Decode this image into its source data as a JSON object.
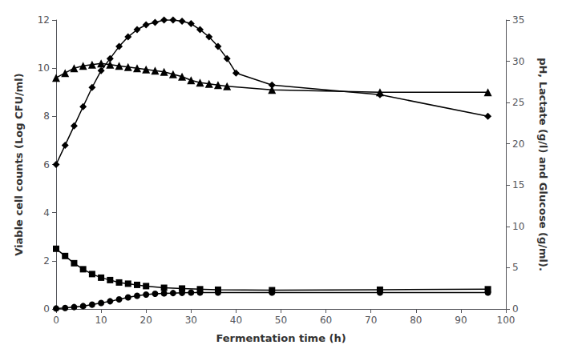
{
  "chart_data": {
    "type": "line",
    "xlabel": "Fermentation time (h)",
    "ylabel": "Viable cell counts (Log CFU/ml)",
    "y2label": "pH, Lactate (g/l) and Glucose (g/ml).",
    "xlim": [
      0,
      100
    ],
    "xticks": [
      0,
      10,
      20,
      30,
      40,
      50,
      60,
      70,
      80,
      90,
      100
    ],
    "ylim": [
      0,
      12
    ],
    "yticks": [
      0,
      2,
      4,
      6,
      8,
      10,
      12
    ],
    "y2lim": [
      0,
      35
    ],
    "y2ticks": [
      0,
      5,
      10,
      15,
      20,
      25,
      30,
      35
    ],
    "grid": false,
    "series": [
      {
        "color": "#000000",
        "marker": "diamond",
        "x": [
          0,
          2,
          4,
          6,
          8,
          10,
          12,
          14,
          16,
          18,
          20,
          22,
          24,
          26,
          28,
          30,
          32,
          34,
          36,
          38,
          40,
          48,
          72,
          96
        ],
        "values": [
          6.0,
          6.8,
          7.6,
          8.4,
          9.2,
          9.9,
          10.4,
          10.9,
          11.3,
          11.6,
          11.8,
          11.9,
          12.0,
          12.0,
          11.95,
          11.85,
          11.6,
          11.3,
          10.9,
          10.4,
          9.8,
          9.3,
          8.9,
          8.0
        ]
      },
      {
        "color": "#000000",
        "marker": "triangle",
        "x": [
          0,
          2,
          4,
          6,
          8,
          10,
          12,
          14,
          16,
          18,
          20,
          22,
          24,
          26,
          28,
          30,
          32,
          34,
          36,
          38,
          48,
          72,
          96
        ],
        "values": [
          9.6,
          9.8,
          10.0,
          10.1,
          10.15,
          10.2,
          10.15,
          10.1,
          10.05,
          10.0,
          9.95,
          9.9,
          9.85,
          9.75,
          9.65,
          9.5,
          9.4,
          9.35,
          9.3,
          9.25,
          9.1,
          9.0,
          9.0
        ]
      },
      {
        "color": "#000000",
        "marker": "square",
        "x": [
          0,
          2,
          4,
          6,
          8,
          10,
          12,
          14,
          16,
          18,
          20,
          24,
          28,
          32,
          36,
          48,
          72,
          96
        ],
        "values": [
          2.5,
          2.2,
          1.9,
          1.65,
          1.45,
          1.3,
          1.2,
          1.1,
          1.05,
          1.0,
          0.95,
          0.88,
          0.85,
          0.82,
          0.8,
          0.78,
          0.8,
          0.82
        ]
      },
      {
        "color": "#000000",
        "marker": "circle",
        "x": [
          0,
          2,
          4,
          6,
          8,
          10,
          12,
          14,
          16,
          18,
          20,
          22,
          24,
          26,
          28,
          30,
          32,
          36,
          48,
          72,
          96
        ],
        "values": [
          0.02,
          0.04,
          0.08,
          0.12,
          0.18,
          0.25,
          0.32,
          0.4,
          0.48,
          0.55,
          0.6,
          0.63,
          0.65,
          0.66,
          0.67,
          0.68,
          0.68,
          0.68,
          0.68,
          0.68,
          0.68
        ]
      }
    ]
  }
}
